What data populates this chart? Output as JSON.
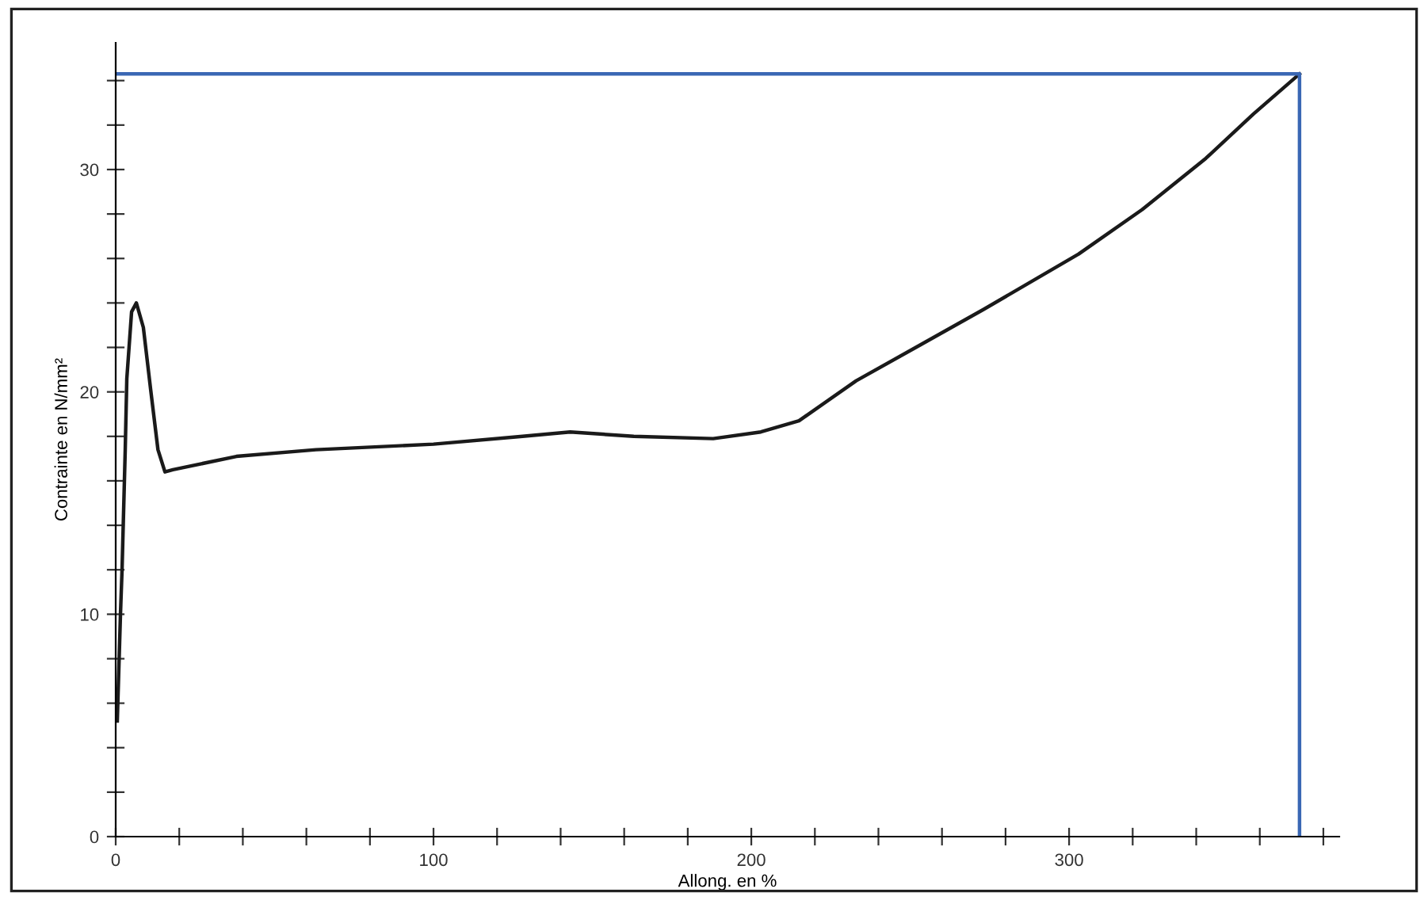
{
  "chart_data": {
    "type": "line",
    "xlabel": "Allong. en %",
    "ylabel": "Contrainte en N/mm²",
    "xlim": [
      0,
      385
    ],
    "ylim": [
      0,
      35.7
    ],
    "xticks": [
      0,
      {
        "value": 20,
        "label": null
      },
      {
        "value": 40,
        "label": null
      },
      {
        "value": 60,
        "label": null
      },
      {
        "value": 80,
        "label": null
      },
      100,
      {
        "value": 120,
        "label": null
      },
      {
        "value": 140,
        "label": null
      },
      {
        "value": 160,
        "label": null
      },
      {
        "value": 180,
        "label": null
      },
      200,
      {
        "value": 220,
        "label": null
      },
      {
        "value": 240,
        "label": null
      },
      {
        "value": 260,
        "label": null
      },
      {
        "value": 280,
        "label": null
      },
      300,
      {
        "value": 320,
        "label": null
      },
      {
        "value": 340,
        "label": null
      },
      {
        "value": 360,
        "label": null
      },
      {
        "value": 380,
        "label": null
      }
    ],
    "yticks": [
      0,
      {
        "value": 2,
        "label": null
      },
      {
        "value": 4,
        "label": null
      },
      {
        "value": 6,
        "label": null
      },
      {
        "value": 8,
        "label": null
      },
      10,
      {
        "value": 12,
        "label": null
      },
      {
        "value": 14,
        "label": null
      },
      {
        "value": 16,
        "label": null
      },
      {
        "value": 18,
        "label": null
      },
      20,
      {
        "value": 22,
        "label": null
      },
      {
        "value": 24,
        "label": null
      },
      {
        "value": 26,
        "label": null
      },
      {
        "value": 28,
        "label": null
      },
      30,
      {
        "value": 32,
        "label": null
      },
      {
        "value": 34,
        "label": null
      }
    ],
    "grid": false,
    "marker": "none",
    "line_style": "solid",
    "series": [
      {
        "color": "#1a1a1a",
        "x": [
          0.5,
          1.5,
          2,
          3,
          3.5,
          5,
          6.5,
          8.7,
          11,
          13.3,
          15.5,
          18,
          38,
          63,
          100,
          128,
          143,
          163,
          188,
          203,
          215,
          233,
          253,
          273,
          303,
          323,
          343,
          358,
          372.5
        ],
        "values": [
          5.2,
          10,
          12,
          17.4,
          20.6,
          23.6,
          24.0,
          22.9,
          20.1,
          17.4,
          16.4,
          16.5,
          17.1,
          17.4,
          17.65,
          18.0,
          18.2,
          18.0,
          17.9,
          18.2,
          18.7,
          20.5,
          22.1,
          23.7,
          26.2,
          28.2,
          30.5,
          32.5,
          34.3
        ]
      },
      {
        "color": "#3a67b4",
        "x": [
          0,
          372.5,
          372.5
        ],
        "values": [
          34.3,
          34.3,
          0
        ]
      }
    ]
  }
}
